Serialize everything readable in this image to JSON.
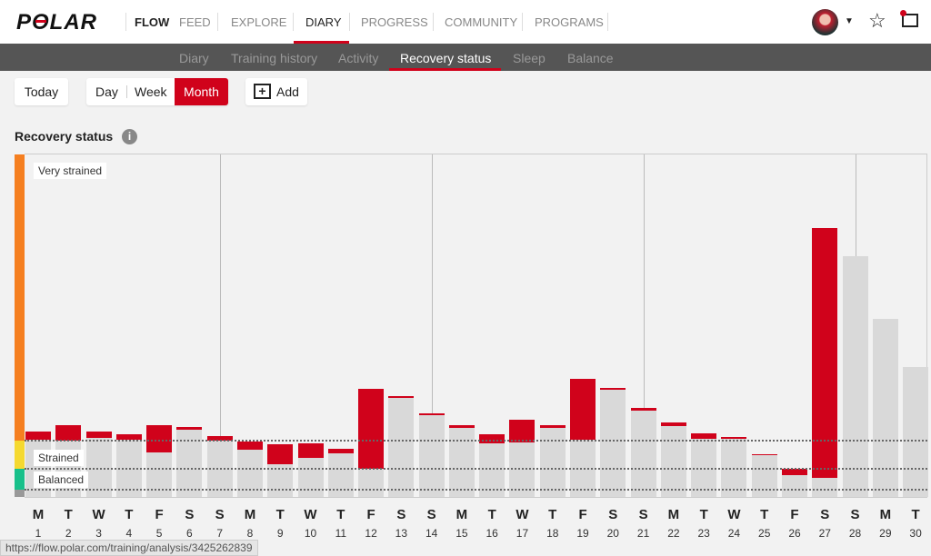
{
  "header": {
    "logo": "POLAR",
    "flow": "FLOW",
    "nav": [
      "FEED",
      "EXPLORE",
      "DIARY",
      "PROGRESS",
      "COMMUNITY",
      "PROGRAMS"
    ],
    "active": "DIARY"
  },
  "subnav": {
    "items": [
      "Diary",
      "Training history",
      "Activity",
      "Recovery status",
      "Sleep",
      "Balance"
    ],
    "active": "Recovery status"
  },
  "toolbar": {
    "today": "Today",
    "day": "Day",
    "week": "Week",
    "month": "Month",
    "add": "Add"
  },
  "section": {
    "title": "Recovery status",
    "info": "i"
  },
  "colors": {
    "accent": "#d0021b",
    "very_strained": "#f57f20",
    "strained": "#f5d930",
    "balanced": "#18c08a",
    "bar": "#d9d9d9"
  },
  "chart_data": {
    "type": "bar",
    "title": "Recovery status",
    "ylim": [
      0,
      100
    ],
    "zones": {
      "very_strained": "Very strained",
      "strained": "Strained",
      "balanced": "Balanced"
    },
    "thresholds": {
      "strained": 16.4,
      "balanced": 8.2,
      "base": 2.1
    },
    "days": [
      "M",
      "T",
      "W",
      "T",
      "F",
      "S",
      "S",
      "M",
      "T",
      "W",
      "T",
      "F",
      "S",
      "S",
      "M",
      "T",
      "W",
      "T",
      "F",
      "S",
      "S",
      "M",
      "T",
      "W",
      "T",
      "F",
      "S",
      "S",
      "M",
      "T"
    ],
    "dates": [
      "1",
      "2",
      "3",
      "4",
      "5",
      "6",
      "7",
      "8",
      "9",
      "10",
      "11",
      "12",
      "13",
      "14",
      "15",
      "16",
      "17",
      "18",
      "19",
      "20",
      "21",
      "22",
      "23",
      "24",
      "25",
      "26",
      "27",
      "28",
      "29",
      "30"
    ],
    "series": [
      {
        "name": "total",
        "values": [
          19.1,
          21.0,
          19.1,
          18.3,
          21.0,
          20.4,
          17.8,
          16.2,
          15.4,
          15.7,
          14.1,
          31.6,
          29.4,
          24.4,
          21.0,
          18.3,
          22.5,
          21.0,
          34.5,
          31.8,
          26.0,
          21.8,
          18.6,
          17.5,
          12.5,
          8.2,
          78.5,
          70.3,
          52.0,
          37.9
        ]
      },
      {
        "name": "strain_bottom",
        "values": [
          16.7,
          16.4,
          17.2,
          16.7,
          13.0,
          19.6,
          16.4,
          13.8,
          9.6,
          11.4,
          12.7,
          8.2,
          28.9,
          23.9,
          20.2,
          15.7,
          15.9,
          20.2,
          16.7,
          31.3,
          25.2,
          20.7,
          17.0,
          17.2,
          12.2,
          6.4,
          5.6,
          null,
          null,
          null
        ]
      }
    ]
  },
  "status_url": "https://flow.polar.com/training/analysis/3425262839"
}
